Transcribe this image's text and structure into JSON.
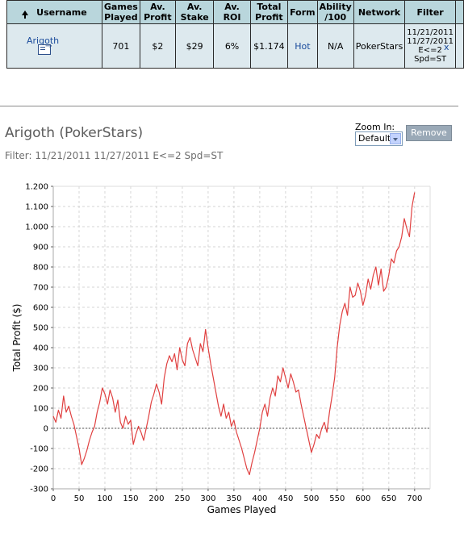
{
  "table": {
    "headers": {
      "username": "Username",
      "games_played": [
        "Games",
        "Played"
      ],
      "av_profit": [
        "Av.",
        "Profit"
      ],
      "av_stake": [
        "Av.",
        "Stake"
      ],
      "av_roi": "Av. ROI",
      "total_profit": [
        "Total",
        "Profit"
      ],
      "form": "Form",
      "ability": [
        "Ability",
        "/100"
      ],
      "network": "Network",
      "filter": "Filter"
    },
    "row": {
      "username": "Arigoth",
      "games_played": "701",
      "av_profit": "$2",
      "av_stake": "$29",
      "av_roi": "6%",
      "total_profit": "$1.174",
      "form": "Hot",
      "ability": "N/A",
      "network": "PokerStars",
      "filter_lines": [
        "11/21/2011",
        "11/27/2011",
        "E<=2",
        "Spd=ST"
      ],
      "close": "x"
    }
  },
  "chart_header": {
    "title": "Arigoth (PokerStars)",
    "filter": "Filter: 11/21/2011 11/27/2011 E<=2 Spd=ST",
    "zoom_label": "Zoom In:",
    "zoom_value": "Default",
    "remove_label": "Remove"
  },
  "colors": {
    "line": "#e04040",
    "header_bg": "#b9d6dc",
    "row_bg": "#dde9ee",
    "link": "#1a4b9c"
  },
  "chart_data": {
    "type": "line",
    "xlabel": "Games Played",
    "ylabel": "Total Profit ($)",
    "xlim": [
      0,
      730
    ],
    "ylim": [
      -300,
      1200
    ],
    "xticks": [
      0,
      50,
      100,
      150,
      200,
      250,
      300,
      350,
      400,
      450,
      500,
      550,
      600,
      650,
      700
    ],
    "yticks": [
      -300,
      -200,
      -100,
      0,
      100,
      200,
      300,
      400,
      500,
      600,
      700,
      800,
      900,
      1000,
      1100,
      1200
    ],
    "ytick_labels": [
      "-300",
      "-200",
      "-100",
      "0",
      "100",
      "200",
      "300",
      "400",
      "500",
      "600",
      "700",
      "800",
      "900",
      "1.000",
      "1.100",
      "1.200"
    ],
    "grid": true,
    "zero_line": true,
    "series": [
      {
        "x": [
          0,
          5,
          10,
          15,
          20,
          25,
          30,
          35,
          40,
          45,
          50,
          55,
          60,
          65,
          70,
          75,
          80,
          85,
          90,
          95,
          100,
          105,
          110,
          115,
          120,
          125,
          130,
          135,
          140,
          145,
          150,
          155,
          160,
          165,
          170,
          175,
          180,
          185,
          190,
          195,
          200,
          205,
          210,
          215,
          220,
          225,
          230,
          235,
          240,
          245,
          250,
          255,
          260,
          265,
          270,
          275,
          280,
          285,
          290,
          295,
          300,
          305,
          310,
          315,
          320,
          325,
          330,
          335,
          340,
          345,
          350,
          355,
          360,
          365,
          370,
          375,
          380,
          385,
          390,
          395,
          400,
          405,
          410,
          415,
          420,
          425,
          430,
          435,
          440,
          445,
          450,
          455,
          460,
          465,
          470,
          475,
          480,
          485,
          490,
          495,
          500,
          505,
          510,
          515,
          520,
          525,
          530,
          535,
          540,
          545,
          550,
          555,
          560,
          565,
          570,
          575,
          580,
          585,
          590,
          595,
          600,
          605,
          610,
          615,
          620,
          625,
          630,
          635,
          640,
          645,
          650,
          655,
          660,
          665,
          670,
          675,
          680,
          685,
          690,
          695,
          700
        ],
        "y": [
          60,
          30,
          90,
          50,
          160,
          80,
          110,
          60,
          20,
          -40,
          -100,
          -180,
          -150,
          -110,
          -60,
          -20,
          10,
          80,
          130,
          200,
          170,
          120,
          190,
          150,
          80,
          140,
          30,
          0,
          60,
          20,
          40,
          -80,
          -30,
          10,
          -20,
          -60,
          0,
          60,
          130,
          170,
          220,
          180,
          120,
          250,
          320,
          360,
          330,
          370,
          290,
          400,
          340,
          310,
          420,
          450,
          390,
          350,
          310,
          420,
          380,
          490,
          400,
          320,
          250,
          180,
          110,
          60,
          120,
          50,
          80,
          10,
          40,
          -20,
          -60,
          -100,
          -150,
          -200,
          -230,
          -170,
          -120,
          -60,
          0,
          80,
          120,
          60,
          150,
          200,
          160,
          260,
          230,
          300,
          250,
          200,
          270,
          230,
          180,
          190,
          120,
          60,
          0,
          -60,
          -120,
          -80,
          -30,
          -50,
          0,
          30,
          -20,
          80,
          160,
          250,
          400,
          510,
          580,
          620,
          560,
          700,
          650,
          660,
          720,
          680,
          610,
          660,
          740,
          690,
          760,
          800,
          710,
          790,
          680,
          700,
          760,
          840,
          820,
          880,
          900,
          950,
          1040,
          990,
          950,
          1100,
          1170
        ]
      }
    ]
  }
}
